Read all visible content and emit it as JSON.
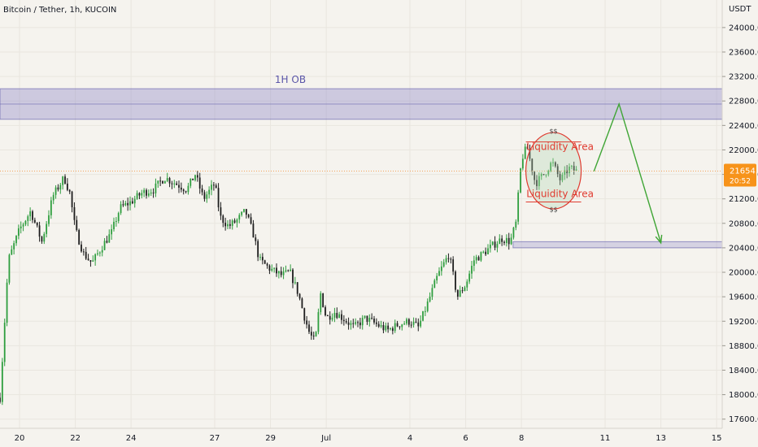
{
  "header": {
    "title": "Bitcoin / Tether, 1h, KUCOIN"
  },
  "colors": {
    "background": "#f5f3ee",
    "grid": "#e9e6df",
    "axis_text": "#131722",
    "up_candle": "#26a69a",
    "down_candle": "#131722",
    "zone_fill": "#8c87c8",
    "zone_border": "#5a55a8",
    "annotation_red": "#e03a2f",
    "arrow_green": "#3fa535",
    "price_badge": "#f7931a",
    "price_line": "#f3a35b"
  },
  "chart_data": {
    "type": "candlestick",
    "title": "Bitcoin / Tether, 1h, KUCOIN",
    "currency": "USDT",
    "ylim": [
      17450,
      24450
    ],
    "y_ticks": [
      "24000.0",
      "23600.0",
      "23200.0",
      "22800.0",
      "22400.0",
      "22000.0",
      "21600.0",
      "21200.0",
      "20800.0",
      "20400.0",
      "20000.0",
      "19600.0",
      "19200.0",
      "18800.0",
      "18400.0",
      "18000.0",
      "17600.0"
    ],
    "x_ticks": [
      {
        "label": "20",
        "day": 20
      },
      {
        "label": "22",
        "day": 22
      },
      {
        "label": "24",
        "day": 24
      },
      {
        "label": "27",
        "day": 27
      },
      {
        "label": "29",
        "day": 29
      },
      {
        "label": "Jul",
        "day": 31
      },
      {
        "label": "4",
        "day": 34
      },
      {
        "label": "6",
        "day": 36
      },
      {
        "label": "8",
        "day": 38
      },
      {
        "label": "11",
        "day": 41
      },
      {
        "label": "13",
        "day": 43
      },
      {
        "label": "15",
        "day": 45
      }
    ],
    "x_range_days": [
      19.3,
      45.2
    ],
    "price_path": [
      [
        19.3,
        17950
      ],
      [
        19.6,
        20200
      ],
      [
        20.0,
        20700
      ],
      [
        20.4,
        21000
      ],
      [
        20.8,
        20500
      ],
      [
        21.2,
        21250
      ],
      [
        21.6,
        21550
      ],
      [
        21.8,
        21300
      ],
      [
        22.0,
        20700
      ],
      [
        22.3,
        20300
      ],
      [
        22.6,
        20150
      ],
      [
        23.0,
        20450
      ],
      [
        23.3,
        20650
      ],
      [
        23.6,
        21050
      ],
      [
        24.0,
        21150
      ],
      [
        24.4,
        21300
      ],
      [
        24.8,
        21350
      ],
      [
        25.2,
        21550
      ],
      [
        25.6,
        21450
      ],
      [
        26.0,
        21350
      ],
      [
        26.3,
        21600
      ],
      [
        26.6,
        21200
      ],
      [
        27.0,
        21450
      ],
      [
        27.2,
        20900
      ],
      [
        27.5,
        20750
      ],
      [
        27.8,
        20850
      ],
      [
        28.1,
        21000
      ],
      [
        28.4,
        20600
      ],
      [
        28.6,
        20200
      ],
      [
        29.0,
        20050
      ],
      [
        29.4,
        19950
      ],
      [
        29.7,
        20000
      ],
      [
        30.0,
        19650
      ],
      [
        30.2,
        19300
      ],
      [
        30.4,
        19000
      ],
      [
        30.6,
        18850
      ],
      [
        30.8,
        19650
      ],
      [
        31.0,
        19250
      ],
      [
        31.3,
        19350
      ],
      [
        31.6,
        19250
      ],
      [
        32.0,
        19100
      ],
      [
        32.4,
        19250
      ],
      [
        32.8,
        19150
      ],
      [
        33.2,
        19050
      ],
      [
        33.6,
        19150
      ],
      [
        34.0,
        19200
      ],
      [
        34.3,
        19100
      ],
      [
        34.6,
        19450
      ],
      [
        35.0,
        19950
      ],
      [
        35.4,
        20300
      ],
      [
        35.7,
        19600
      ],
      [
        36.0,
        19800
      ],
      [
        36.3,
        20200
      ],
      [
        36.6,
        20300
      ],
      [
        37.0,
        20450
      ],
      [
        37.3,
        20550
      ],
      [
        37.6,
        20500
      ],
      [
        37.8,
        20800
      ],
      [
        38.0,
        21850
      ],
      [
        38.2,
        22050
      ],
      [
        38.5,
        21450
      ],
      [
        38.8,
        21600
      ],
      [
        39.1,
        21800
      ],
      [
        39.4,
        21500
      ],
      [
        39.7,
        21700
      ],
      [
        40.0,
        21650
      ]
    ],
    "last_price": "21654.7",
    "countdown": "20:52",
    "zones": [
      {
        "label": "1H OB",
        "from": 22500,
        "to": 23000
      },
      {
        "label": "",
        "from": 20400,
        "to": 20500
      }
    ],
    "annotations": [
      {
        "text": "Liquidity Area",
        "position": "upper"
      },
      {
        "text": "Liquidity Area",
        "position": "lower"
      },
      {
        "text": "$$",
        "position": "upper"
      },
      {
        "text": "$$",
        "position": "lower"
      }
    ],
    "projection": [
      {
        "day": 40.6,
        "price": 21650
      },
      {
        "day": 41.5,
        "price": 22750
      },
      {
        "day": 43.0,
        "price": 20480
      }
    ],
    "grid": true,
    "legend": "none"
  }
}
